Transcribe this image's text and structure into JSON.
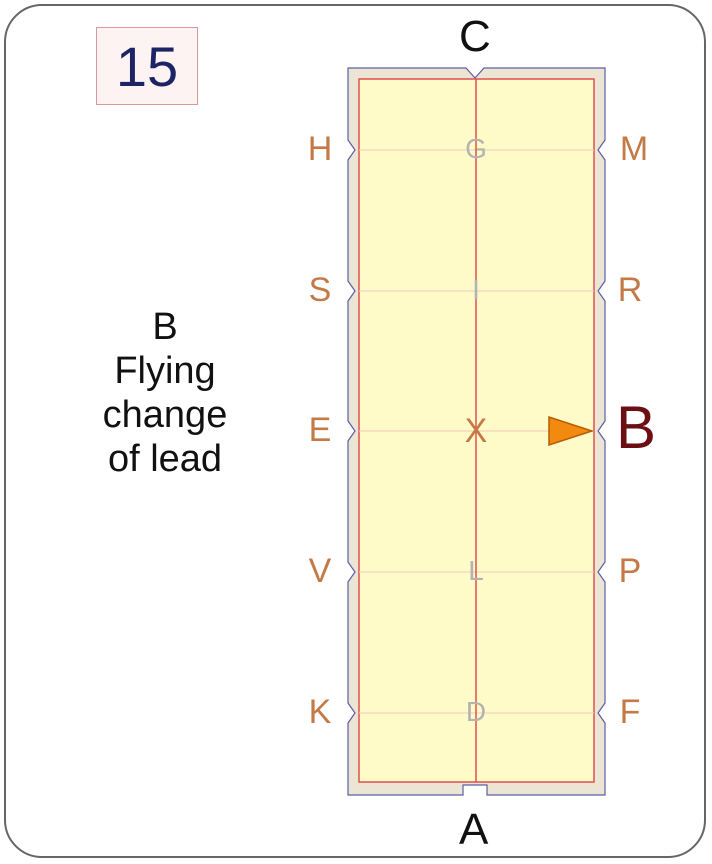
{
  "card": {
    "number": "15",
    "movement": [
      "B",
      "Flying",
      "change",
      "of lead"
    ]
  },
  "arena": {
    "ends": {
      "top": "C",
      "bottom": "A"
    },
    "left_letters": [
      "H",
      "S",
      "E",
      "V",
      "K"
    ],
    "right_letters": [
      "M",
      "R",
      "B",
      "P",
      "F"
    ],
    "center_letters": [
      "G",
      "I",
      "X",
      "L",
      "D"
    ],
    "highlight_letter": "B",
    "marker": "orange-triangle-pointing-right-at-B",
    "colors": {
      "arena_fill": "#fffbc8",
      "border_fill": "#ede5d4",
      "center_line": "#e05050",
      "side_letters": "#c37a47",
      "center_letters": "#b3b3b3",
      "highlight": "#6b0f12",
      "marker": "#f28a10"
    }
  }
}
